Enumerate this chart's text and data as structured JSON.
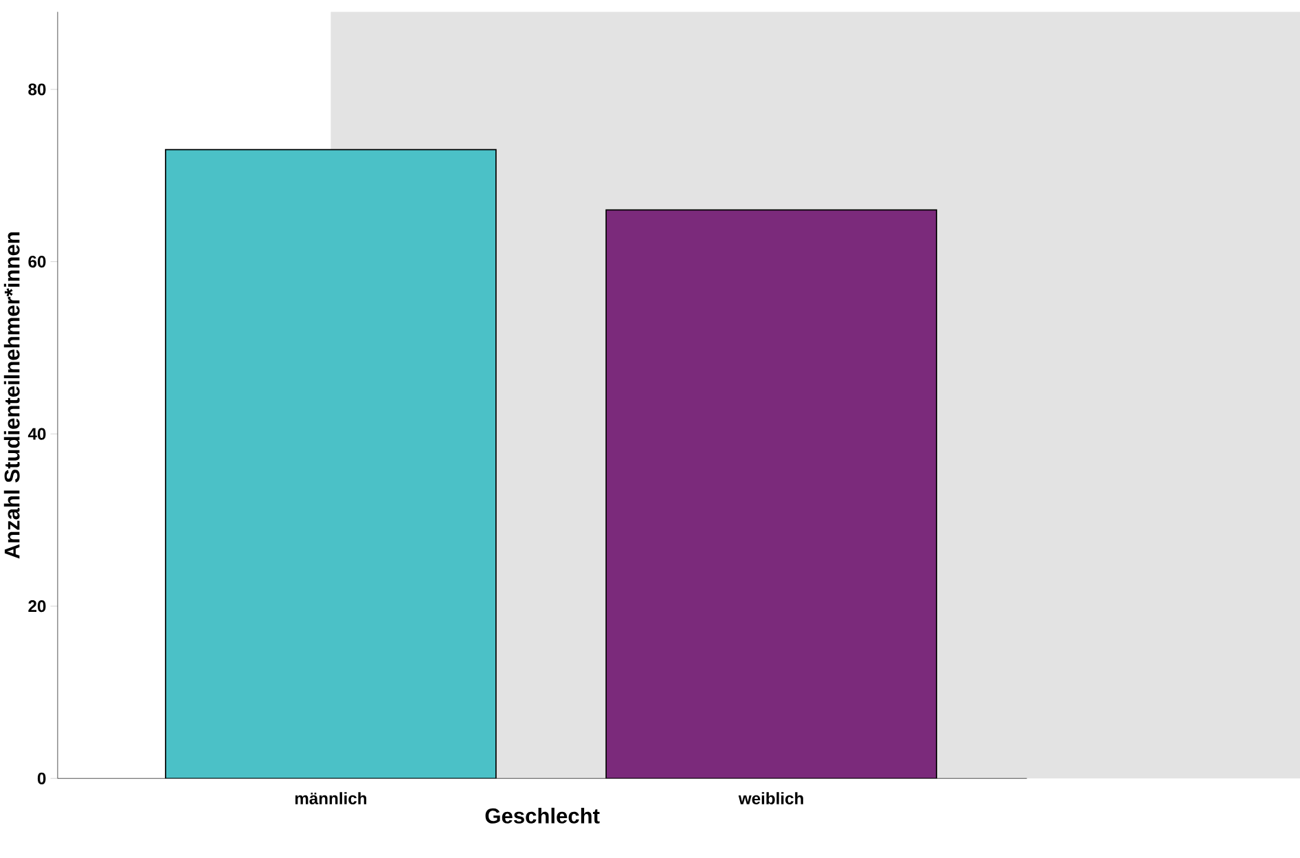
{
  "chart_data": {
    "type": "bar",
    "categories": [
      "männlich",
      "weiblich"
    ],
    "values": [
      73,
      66
    ],
    "colors": [
      "#4bc1c7",
      "#7b2a7b"
    ],
    "xlabel": "Geschlecht",
    "ylabel": "Anzahl Studienteilnehmer*innen",
    "ylim": [
      0,
      89
    ],
    "yticks": [
      0,
      20,
      40,
      60,
      80
    ]
  }
}
